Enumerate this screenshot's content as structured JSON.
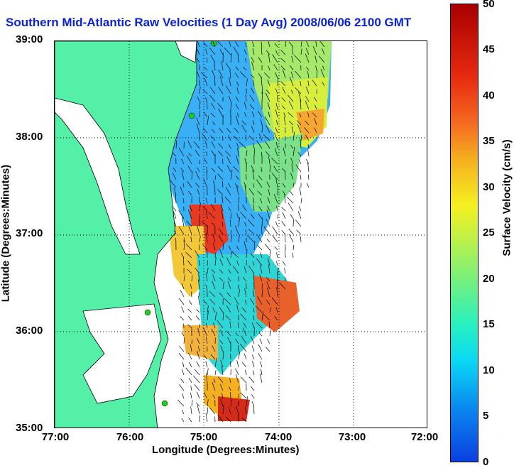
{
  "title": "Southern Mid-Atlantic Raw Velocities (1 Day Avg) 2008/06/06 2100 GMT",
  "map": {
    "x_axis_label": "Longitude (Degrees:Minutes)",
    "y_axis_label": "Latitude (Degrees:Minutes)",
    "x_ticks": [
      "77:00",
      "76:00",
      "75:00",
      "74:00",
      "73:00",
      "72:00"
    ],
    "y_ticks": [
      "39:00",
      "38:00",
      "37:00",
      "36:00",
      "35:00"
    ],
    "grid": "dotted",
    "land_color": "#55f0a8",
    "station_color": "#22cc22"
  },
  "colorbar": {
    "label": "Surface Velocity (cm/s)",
    "ticks": [
      "50",
      "45",
      "40",
      "35",
      "30",
      "25",
      "20",
      "15",
      "10",
      "5",
      "0"
    ],
    "min": 0,
    "max": 50,
    "colormap": "jet"
  }
}
